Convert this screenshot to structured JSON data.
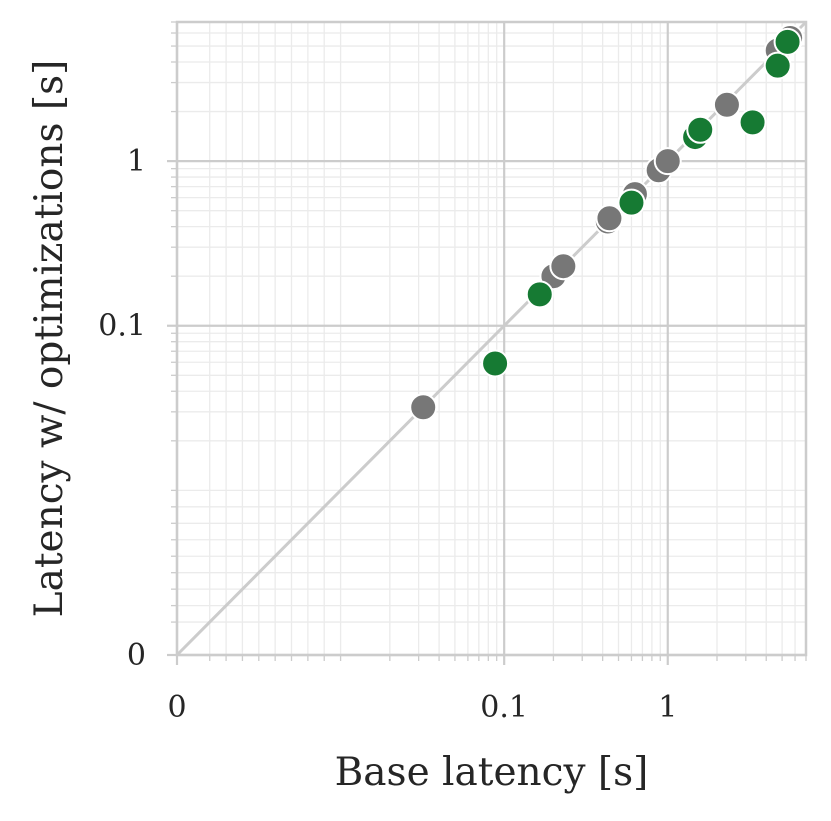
{
  "chart_data": {
    "type": "scatter",
    "xlabel": "Base latency [s]",
    "ylabel": "Latency w/ optimizations [s]",
    "x_scale": "symlog",
    "y_scale": "symlog",
    "xlim": [
      0,
      7
    ],
    "ylim": [
      0,
      7
    ],
    "x_ticks": [
      {
        "value": 0,
        "label": "0"
      },
      {
        "value": 0.1,
        "label": "0.1"
      },
      {
        "value": 1,
        "label": "1"
      }
    ],
    "y_ticks": [
      {
        "value": 0,
        "label": "0"
      },
      {
        "value": 0.1,
        "label": "0.1"
      },
      {
        "value": 1,
        "label": "1"
      }
    ],
    "grid": true,
    "reference_line": "y = x",
    "series": [
      {
        "color": "#777777",
        "points": [
          [
            0.032,
            0.032
          ],
          [
            0.2,
            0.2
          ],
          [
            0.23,
            0.23
          ],
          [
            0.43,
            0.43
          ],
          [
            0.44,
            0.45
          ],
          [
            0.63,
            0.63
          ],
          [
            0.88,
            0.88
          ],
          [
            1.0,
            1.0
          ],
          [
            1.52,
            1.42
          ],
          [
            2.3,
            2.2
          ],
          [
            4.7,
            4.7
          ],
          [
            5.6,
            5.6
          ]
        ]
      },
      {
        "color": "#167a33",
        "points": [
          [
            0.088,
            0.059
          ],
          [
            0.165,
            0.155
          ],
          [
            0.6,
            0.56
          ],
          [
            1.47,
            1.4
          ],
          [
            1.58,
            1.55
          ],
          [
            3.3,
            1.72
          ],
          [
            4.7,
            3.8
          ],
          [
            5.4,
            5.3
          ]
        ]
      }
    ]
  }
}
